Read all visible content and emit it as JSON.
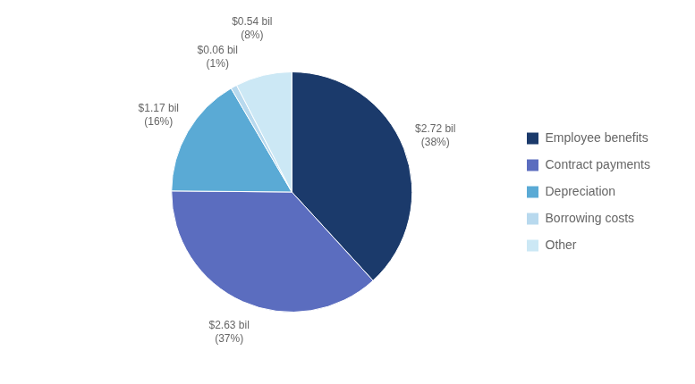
{
  "chart_data": {
    "type": "pie",
    "categories": [
      "Employee benefits",
      "Contract payments",
      "Depreciation",
      "Borrowing costs",
      "Other"
    ],
    "values": [
      2.72,
      2.63,
      1.17,
      0.06,
      0.54
    ],
    "value_labels": [
      "$2.72 bil",
      "$2.63 bil",
      "$1.17 bil",
      "$0.06 bil",
      "$0.54 bil"
    ],
    "pct": [
      38,
      37,
      16,
      1,
      8
    ],
    "pct_labels": [
      "(38%)",
      "(37%)",
      "(16%)",
      "(1%)",
      "(8%)"
    ],
    "colors": [
      "#1b3a6b",
      "#5b6dbf",
      "#5aaad5",
      "#b8d9ee",
      "#cce8f5"
    ],
    "legend": "right",
    "data_labels": true
  }
}
